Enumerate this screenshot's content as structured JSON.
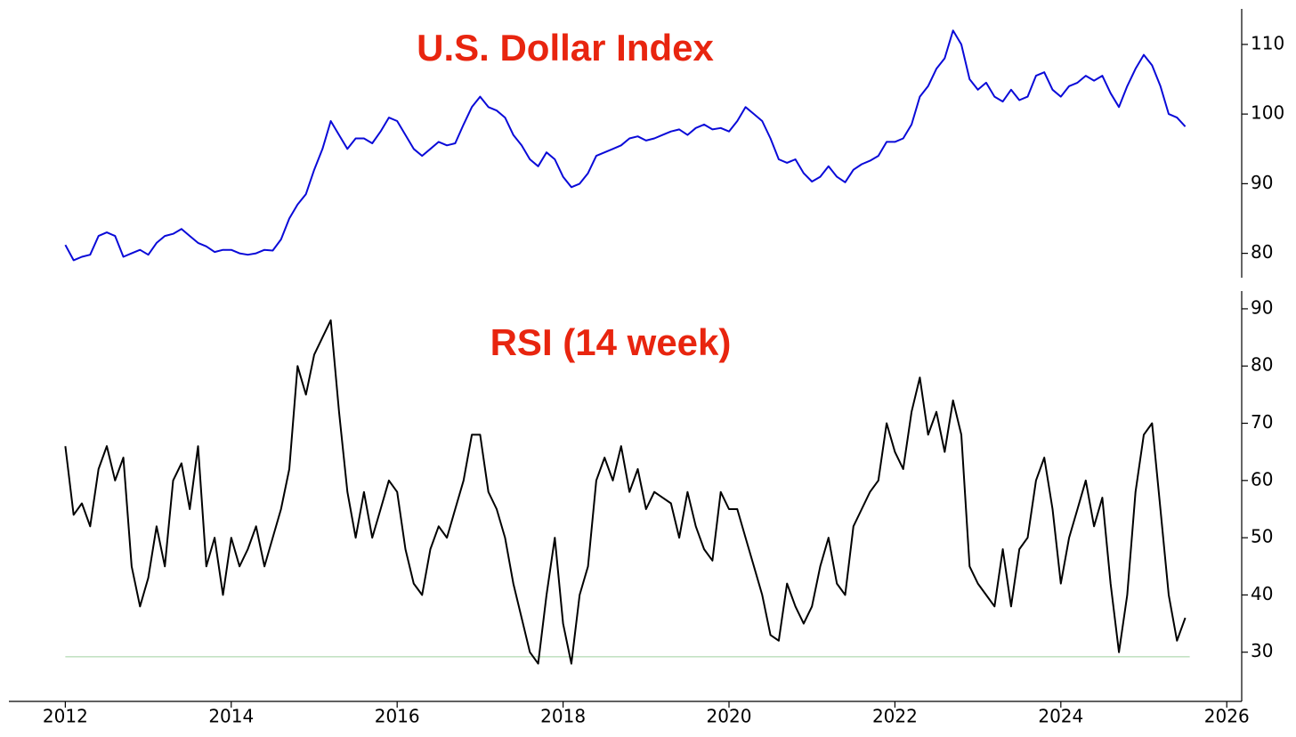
{
  "chart_data": [
    {
      "type": "line",
      "title": "U.S. Dollar Index",
      "color": "#0a0ad8",
      "x": [
        2012.0,
        2012.1,
        2012.2,
        2012.3,
        2012.4,
        2012.5,
        2012.6,
        2012.7,
        2012.8,
        2012.9,
        2013.0,
        2013.1,
        2013.2,
        2013.3,
        2013.4,
        2013.5,
        2013.6,
        2013.7,
        2013.8,
        2013.9,
        2014.0,
        2014.1,
        2014.2,
        2014.3,
        2014.4,
        2014.5,
        2014.6,
        2014.7,
        2014.8,
        2014.9,
        2015.0,
        2015.1,
        2015.2,
        2015.3,
        2015.4,
        2015.5,
        2015.6,
        2015.7,
        2015.8,
        2015.9,
        2016.0,
        2016.1,
        2016.2,
        2016.3,
        2016.4,
        2016.5,
        2016.6,
        2016.7,
        2016.8,
        2016.9,
        2017.0,
        2017.1,
        2017.2,
        2017.3,
        2017.4,
        2017.5,
        2017.6,
        2017.7,
        2017.8,
        2017.9,
        2018.0,
        2018.1,
        2018.2,
        2018.3,
        2018.4,
        2018.5,
        2018.6,
        2018.7,
        2018.8,
        2018.9,
        2019.0,
        2019.1,
        2019.2,
        2019.3,
        2019.4,
        2019.5,
        2019.6,
        2019.7,
        2019.8,
        2019.9,
        2020.0,
        2020.1,
        2020.2,
        2020.3,
        2020.4,
        2020.5,
        2020.6,
        2020.7,
        2020.8,
        2020.9,
        2021.0,
        2021.1,
        2021.2,
        2021.3,
        2021.4,
        2021.5,
        2021.6,
        2021.7,
        2021.8,
        2021.9,
        2022.0,
        2022.1,
        2022.2,
        2022.3,
        2022.4,
        2022.5,
        2022.6,
        2022.7,
        2022.8,
        2022.9,
        2023.0,
        2023.1,
        2023.2,
        2023.3,
        2023.4,
        2023.5,
        2023.6,
        2023.7,
        2023.8,
        2023.9,
        2024.0,
        2024.1,
        2024.2,
        2024.3,
        2024.4,
        2024.5,
        2024.6,
        2024.7,
        2024.8,
        2024.9,
        2025.0,
        2025.1,
        2025.2,
        2025.3,
        2025.4,
        2025.5
      ],
      "values": [
        81.2,
        79,
        79.5,
        79.8,
        82.5,
        83,
        82.5,
        79.5,
        80,
        80.5,
        79.8,
        81.5,
        82.5,
        82.8,
        83.5,
        82.5,
        81.5,
        81,
        80.2,
        80.5,
        80.5,
        80,
        79.8,
        80,
        80.5,
        80.4,
        82,
        85,
        87,
        88.5,
        92,
        95,
        99,
        97,
        95,
        96.5,
        96.5,
        95.8,
        97.5,
        99.5,
        99,
        97,
        95,
        94,
        95,
        96,
        95.5,
        95.8,
        98.5,
        101,
        102.5,
        101,
        100.5,
        99.5,
        97,
        95.5,
        93.5,
        92.5,
        94.5,
        93.5,
        91,
        89.5,
        90,
        91.5,
        94,
        94.5,
        95,
        95.5,
        96.5,
        96.8,
        96.2,
        96.5,
        97,
        97.5,
        97.8,
        97,
        98,
        98.5,
        97.8,
        98,
        97.5,
        99,
        101,
        100,
        99,
        96.5,
        93.5,
        93,
        93.5,
        91.5,
        90.3,
        91,
        92.5,
        91,
        90.2,
        92,
        92.8,
        93.3,
        94,
        96,
        96,
        96.5,
        98.5,
        102.5,
        104,
        106.5,
        108,
        112,
        110,
        105,
        103.5,
        104.5,
        102.5,
        101.8,
        103.5,
        102,
        102.5,
        105.5,
        106,
        103.5,
        102.5,
        104,
        104.5,
        105.5,
        104.8,
        105.5,
        103,
        101,
        104,
        106.5,
        108.5,
        107,
        104,
        100,
        99.5,
        98.2
      ],
      "xlim": [
        2011.32,
        2026.18
      ],
      "ylim": [
        76.5,
        115.1
      ],
      "yticks": [
        80,
        90,
        100,
        110
      ]
    },
    {
      "type": "line",
      "title": "RSI (14 week)",
      "color": "#000000",
      "x": [
        2012.0,
        2012.1,
        2012.2,
        2012.3,
        2012.4,
        2012.5,
        2012.6,
        2012.7,
        2012.8,
        2012.9,
        2013.0,
        2013.1,
        2013.2,
        2013.3,
        2013.4,
        2013.5,
        2013.6,
        2013.7,
        2013.8,
        2013.9,
        2014.0,
        2014.1,
        2014.2,
        2014.3,
        2014.4,
        2014.5,
        2014.6,
        2014.7,
        2014.8,
        2014.9,
        2015.0,
        2015.1,
        2015.2,
        2015.3,
        2015.4,
        2015.5,
        2015.6,
        2015.7,
        2015.8,
        2015.9,
        2016.0,
        2016.1,
        2016.2,
        2016.3,
        2016.4,
        2016.5,
        2016.6,
        2016.7,
        2016.8,
        2016.9,
        2017.0,
        2017.1,
        2017.2,
        2017.3,
        2017.4,
        2017.5,
        2017.6,
        2017.7,
        2017.8,
        2017.9,
        2018.0,
        2018.1,
        2018.2,
        2018.3,
        2018.4,
        2018.5,
        2018.6,
        2018.7,
        2018.8,
        2018.9,
        2019.0,
        2019.1,
        2019.2,
        2019.3,
        2019.4,
        2019.5,
        2019.6,
        2019.7,
        2019.8,
        2019.9,
        2020.0,
        2020.1,
        2020.2,
        2020.3,
        2020.4,
        2020.5,
        2020.6,
        2020.7,
        2020.8,
        2020.9,
        2021.0,
        2021.1,
        2021.2,
        2021.3,
        2021.4,
        2021.5,
        2021.6,
        2021.7,
        2021.8,
        2021.9,
        2022.0,
        2022.1,
        2022.2,
        2022.3,
        2022.4,
        2022.5,
        2022.6,
        2022.7,
        2022.8,
        2022.9,
        2023.0,
        2023.1,
        2023.2,
        2023.3,
        2023.4,
        2023.5,
        2023.6,
        2023.7,
        2023.8,
        2023.9,
        2024.0,
        2024.1,
        2024.2,
        2024.3,
        2024.4,
        2024.5,
        2024.6,
        2024.7,
        2024.8,
        2024.9,
        2025.0,
        2025.1,
        2025.2,
        2025.3,
        2025.4,
        2025.5
      ],
      "values": [
        66,
        54,
        56,
        52,
        62,
        66,
        60,
        64,
        45,
        38,
        43,
        52,
        45,
        60,
        63,
        55,
        66,
        45,
        50,
        40,
        50,
        45,
        48,
        52,
        45,
        50,
        55,
        62,
        80,
        75,
        82,
        85,
        88,
        72,
        58,
        50,
        58,
        50,
        55,
        60,
        58,
        48,
        42,
        40,
        48,
        52,
        50,
        55,
        60,
        68,
        68,
        58,
        55,
        50,
        42,
        36,
        30,
        28,
        40,
        50,
        35,
        28,
        40,
        45,
        60,
        64,
        60,
        66,
        58,
        62,
        55,
        58,
        57,
        56,
        50,
        58,
        52,
        48,
        46,
        58,
        55,
        55,
        50,
        45,
        40,
        33,
        32,
        42,
        38,
        35,
        38,
        45,
        50,
        42,
        40,
        52,
        55,
        58,
        60,
        70,
        65,
        62,
        72,
        78,
        68,
        72,
        65,
        74,
        68,
        45,
        42,
        40,
        38,
        48,
        38,
        48,
        50,
        60,
        64,
        55,
        42,
        50,
        55,
        60,
        52,
        57,
        42,
        30,
        40,
        58,
        68,
        70,
        55,
        40,
        32,
        36
      ],
      "xlim": [
        2011.32,
        2026.18
      ],
      "ylim": [
        21.4,
        93.1
      ],
      "yticks": [
        30,
        40,
        50,
        60,
        70,
        80,
        90
      ],
      "xticks": [
        2012,
        2014,
        2016,
        2018,
        2020,
        2022,
        2024,
        2026
      ],
      "hline": {
        "value": 29.2,
        "color": "#9fd09f"
      }
    }
  ]
}
